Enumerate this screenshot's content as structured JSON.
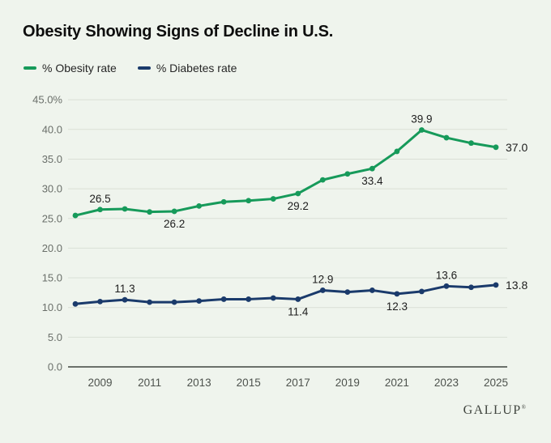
{
  "title": "Obesity Showing Signs of Decline in U.S.",
  "legend": [
    {
      "label": "% Obesity rate",
      "color": "#169a5a"
    },
    {
      "label": "% Diabetes rate",
      "color": "#1a3a6b"
    }
  ],
  "brand": {
    "name": "GALLUP",
    "mark": "®"
  },
  "colors": {
    "background": "#eff4ed",
    "gridline": "#dadfd6",
    "axis_line": "#3e443f",
    "y_tick_text": "#6a6f6a",
    "x_tick_text": "#4d524d",
    "point_label_text": "#1d1d1d",
    "obesity_green": "#169a5a",
    "diabetes_navy": "#1a3a6b"
  },
  "chart_data": {
    "type": "line",
    "title": "Obesity Showing Signs of Decline in U.S.",
    "x": [
      2008,
      2009,
      2010,
      2011,
      2012,
      2013,
      2014,
      2015,
      2016,
      2017,
      2018,
      2019,
      2020,
      2021,
      2022,
      2023,
      2024,
      2025
    ],
    "x_tick_labels": [
      "2009",
      "2011",
      "2013",
      "2015",
      "2017",
      "2019",
      "2021",
      "2023",
      "2025"
    ],
    "ylim": [
      0,
      45
    ],
    "y_tick_values": [
      0,
      5,
      10,
      15,
      20,
      25,
      30,
      35,
      40,
      45
    ],
    "y_tick_labels": [
      "0.0",
      "5.0",
      "10.0",
      "15.0",
      "20.0",
      "25.0",
      "30.0",
      "35.0",
      "40.0",
      "45.0%"
    ],
    "grid": true,
    "legend_position": "top-left",
    "series": [
      {
        "name": "% Obesity rate",
        "slug": "obesity",
        "color": "#169a5a",
        "values": [
          25.5,
          26.5,
          26.6,
          26.1,
          26.2,
          27.1,
          27.8,
          28.0,
          28.3,
          29.2,
          31.5,
          32.5,
          33.4,
          36.3,
          39.9,
          38.6,
          37.7,
          37.0
        ],
        "point_labels": [
          {
            "x": 2009,
            "text": "26.5",
            "pos": "above"
          },
          {
            "x": 2012,
            "text": "26.2",
            "pos": "below"
          },
          {
            "x": 2017,
            "text": "29.2",
            "pos": "below"
          },
          {
            "x": 2020,
            "text": "33.4",
            "pos": "below"
          },
          {
            "x": 2022,
            "text": "39.9",
            "pos": "above"
          },
          {
            "x": 2025,
            "text": "37.0",
            "pos": "right"
          }
        ]
      },
      {
        "name": "% Diabetes rate",
        "slug": "diabetes",
        "color": "#1a3a6b",
        "values": [
          10.6,
          11.0,
          11.3,
          10.9,
          10.9,
          11.1,
          11.4,
          11.4,
          11.6,
          11.4,
          12.9,
          12.6,
          12.9,
          12.3,
          12.7,
          13.6,
          13.4,
          13.8
        ],
        "point_labels": [
          {
            "x": 2010,
            "text": "11.3",
            "pos": "above"
          },
          {
            "x": 2017,
            "text": "11.4",
            "pos": "below"
          },
          {
            "x": 2018,
            "text": "12.9",
            "pos": "above"
          },
          {
            "x": 2021,
            "text": "12.3",
            "pos": "below"
          },
          {
            "x": 2023,
            "text": "13.6",
            "pos": "above"
          },
          {
            "x": 2025,
            "text": "13.8",
            "pos": "right"
          }
        ]
      }
    ]
  }
}
